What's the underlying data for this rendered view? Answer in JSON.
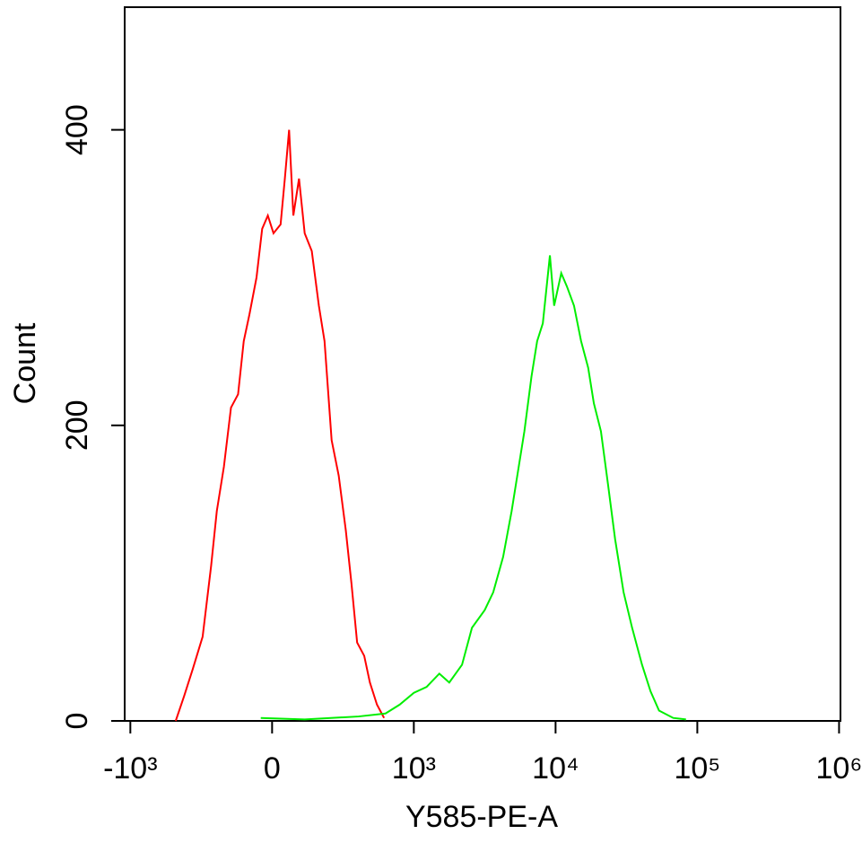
{
  "chart_data": {
    "type": "line",
    "x_label": "Y585-PE-A",
    "y_label": "Count",
    "xlim": [
      -0.04,
      5.01
    ],
    "ylim": [
      0,
      483
    ],
    "xticks": [
      {
        "value": 0,
        "label": "-10³"
      },
      {
        "value": 1,
        "label": "0"
      },
      {
        "value": 2,
        "label": "10³"
      },
      {
        "value": 3,
        "label": "10⁴"
      },
      {
        "value": 4,
        "label": "10⁵"
      },
      {
        "value": 5,
        "label": "10⁶"
      }
    ],
    "yticks": [
      0,
      200,
      400
    ],
    "series": [
      {
        "color": "#ff0000",
        "x": [
          0.32,
          0.38,
          0.44,
          0.51,
          0.57,
          0.61,
          0.66,
          0.71,
          0.76,
          0.8,
          0.84,
          0.89,
          0.93,
          0.97,
          1.01,
          1.06,
          1.09,
          1.12,
          1.15,
          1.19,
          1.23,
          1.28,
          1.33,
          1.37,
          1.42,
          1.47,
          1.52,
          1.56,
          1.6,
          1.65,
          1.69,
          1.74,
          1.79
        ],
        "values": [
          0,
          17,
          35,
          57,
          105,
          142,
          172,
          212,
          221,
          257,
          275,
          300,
          333,
          342,
          330,
          336,
          367,
          400,
          342,
          367,
          330,
          318,
          281,
          257,
          190,
          166,
          129,
          93,
          53,
          44,
          26,
          11,
          2
        ]
      },
      {
        "color": "#00ee00",
        "x": [
          0.92,
          1.23,
          1.61,
          1.8,
          1.9,
          2.0,
          2.09,
          2.18,
          2.25,
          2.34,
          2.41,
          2.5,
          2.56,
          2.63,
          2.69,
          2.74,
          2.78,
          2.83,
          2.87,
          2.91,
          2.96,
          2.99,
          3.04,
          3.08,
          3.13,
          3.18,
          3.23,
          3.27,
          3.32,
          3.37,
          3.42,
          3.48,
          3.54,
          3.61,
          3.67,
          3.73,
          3.83,
          3.92
        ],
        "values": [
          2,
          1,
          3,
          5,
          11,
          19,
          23,
          32,
          26,
          38,
          63,
          75,
          87,
          111,
          142,
          172,
          196,
          233,
          257,
          269,
          315,
          281,
          303,
          294,
          281,
          257,
          239,
          215,
          196,
          160,
          123,
          87,
          63,
          38,
          20,
          7,
          2,
          1
        ]
      }
    ]
  }
}
